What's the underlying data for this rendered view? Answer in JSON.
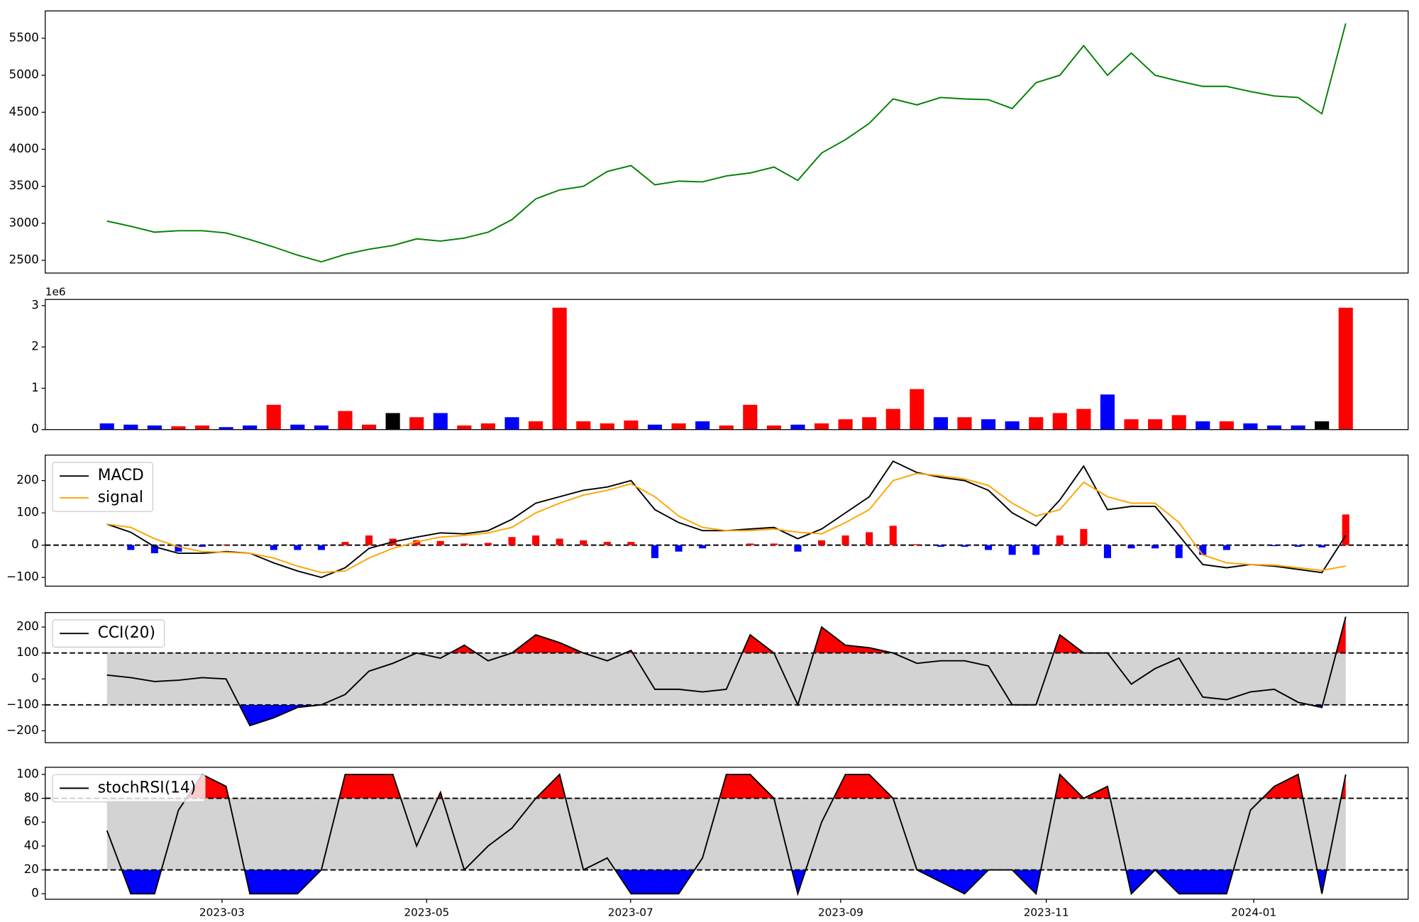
{
  "chart_data": [
    {
      "type": "line",
      "xlim": [
        -2.59,
        54.62
      ],
      "ylim": [
        2328,
        5869
      ],
      "yticks": [
        2500,
        3000,
        3500,
        4000,
        4500,
        5000,
        5500
      ],
      "series": [
        {
          "color": "#008000",
          "values": [
            3030,
            2960,
            2880,
            2900,
            2900,
            2870,
            2780,
            2680,
            2570,
            2480,
            2580,
            2650,
            2700,
            2790,
            2760,
            2800,
            2880,
            3050,
            3330,
            3450,
            3500,
            3700,
            3780,
            3520,
            3570,
            3560,
            3640,
            3680,
            3760,
            3580,
            3950,
            4130,
            4350,
            4680,
            4600,
            4700,
            4680,
            4670,
            4550,
            4900,
            5000,
            5400,
            5000,
            5300,
            5000,
            4920,
            4850,
            4850,
            4780,
            4720,
            4700,
            4480,
            5700
          ]
        }
      ]
    },
    {
      "type": "bar",
      "xlim": [
        -2.59,
        54.62
      ],
      "offset_text": "1e6",
      "ylim": [
        0,
        3.15
      ],
      "yticks": [
        0,
        1,
        2,
        3
      ],
      "values": [
        0.15,
        0.12,
        0.1,
        0.08,
        0.1,
        0.06,
        0.1,
        0.6,
        0.12,
        0.1,
        0.45,
        0.12,
        0.4,
        0.3,
        0.4,
        0.1,
        0.15,
        0.3,
        0.2,
        2.95,
        0.2,
        0.15,
        0.22,
        0.12,
        0.15,
        0.2,
        0.1,
        0.6,
        0.1,
        0.12,
        0.15,
        0.25,
        0.3,
        0.5,
        0.98,
        0.3,
        0.3,
        0.25,
        0.2,
        0.3,
        0.4,
        0.5,
        0.85,
        0.25,
        0.25,
        0.35,
        0.2,
        0.2,
        0.15,
        0.1,
        0.1,
        0.2,
        2.95
      ],
      "colors": [
        "blue",
        "blue",
        "blue",
        "red",
        "red",
        "blue",
        "blue",
        "red",
        "blue",
        "blue",
        "red",
        "red",
        "black",
        "red",
        "blue",
        "red",
        "red",
        "blue",
        "red",
        "red",
        "red",
        "red",
        "red",
        "blue",
        "red",
        "blue",
        "red",
        "red",
        "red",
        "blue",
        "red",
        "red",
        "red",
        "red",
        "red",
        "blue",
        "red",
        "blue",
        "blue",
        "red",
        "red",
        "red",
        "blue",
        "red",
        "red",
        "red",
        "blue",
        "red",
        "blue",
        "blue",
        "blue",
        "black",
        "red"
      ]
    },
    {
      "type": "line",
      "xlim": [
        -2.59,
        54.62
      ],
      "legend": "upper left",
      "ylim": [
        -127,
        279
      ],
      "yticks": [
        {
          "value": -100,
          "label": "−100"
        },
        0,
        100,
        200
      ],
      "hlines": [
        0
      ],
      "series": [
        {
          "kind": "bar",
          "positive_color": "red",
          "negative_color": "blue",
          "values": [
            0,
            -15,
            -25,
            -20,
            -5,
            2,
            0,
            -15,
            -15,
            -15,
            10,
            30,
            20,
            15,
            13,
            5,
            7,
            25,
            30,
            20,
            15,
            10,
            10,
            -40,
            -20,
            -10,
            0,
            5,
            5,
            -20,
            15,
            30,
            40,
            60,
            3,
            -5,
            -5,
            -15,
            -30,
            -30,
            30,
            50,
            -40,
            -10,
            -10,
            -40,
            -30,
            -15,
            0,
            -3,
            -5,
            -7,
            95
          ]
        },
        {
          "name": "MACD",
          "color": "#000000",
          "values": [
            65,
            40,
            -5,
            -25,
            -25,
            -20,
            -25,
            -55,
            -80,
            -100,
            -70,
            -10,
            10,
            25,
            38,
            35,
            45,
            80,
            130,
            150,
            170,
            180,
            200,
            110,
            70,
            45,
            45,
            50,
            55,
            20,
            50,
            100,
            150,
            260,
            225,
            210,
            200,
            170,
            100,
            60,
            140,
            245,
            110,
            120,
            120,
            30,
            -60,
            -70,
            -60,
            -65,
            -75,
            -85,
            30
          ]
        },
        {
          "name": "signal",
          "color": "#ffa500",
          "values": [
            65,
            55,
            20,
            -5,
            -20,
            -22,
            -25,
            -40,
            -65,
            -85,
            -80,
            -40,
            -10,
            10,
            25,
            30,
            38,
            55,
            100,
            130,
            155,
            170,
            190,
            150,
            90,
            55,
            45,
            45,
            50,
            40,
            35,
            70,
            110,
            200,
            222,
            215,
            205,
            185,
            130,
            90,
            110,
            195,
            150,
            130,
            130,
            70,
            -30,
            -55,
            -60,
            -62,
            -70,
            -78,
            -65
          ]
        }
      ]
    },
    {
      "type": "oscillator",
      "xlim": [
        -2.59,
        54.62
      ],
      "legend": "upper left",
      "ylim": [
        -246,
        256
      ],
      "yticks": [
        {
          "value": -200,
          "label": "−200"
        },
        {
          "value": -100,
          "label": "−100"
        },
        0,
        100,
        200
      ],
      "bands": [
        -100,
        100
      ],
      "band_fill": "#d3d3d3",
      "above_color": "red",
      "below_color": "blue",
      "series": [
        {
          "name": "CCI(20)",
          "color": "#000000",
          "values": [
            15,
            5,
            -10,
            -5,
            5,
            0,
            -180,
            -150,
            -110,
            -100,
            -60,
            30,
            60,
            100,
            80,
            130,
            70,
            100,
            170,
            140,
            100,
            70,
            110,
            -40,
            -40,
            -50,
            -40,
            170,
            100,
            -100,
            200,
            130,
            120,
            100,
            60,
            70,
            70,
            50,
            -100,
            -100,
            170,
            100,
            100,
            -20,
            40,
            80,
            -70,
            -80,
            -50,
            -40,
            -90,
            -110,
            240
          ]
        }
      ]
    },
    {
      "type": "oscillator",
      "xlim": [
        -2.59,
        54.62
      ],
      "legend": "upper left",
      "ylim": [
        -4.6,
        106
      ],
      "yticks": [
        0,
        20,
        40,
        60,
        80,
        100
      ],
      "bands": [
        20,
        80
      ],
      "band_fill": "#d3d3d3",
      "above_color": "red",
      "below_color": "blue",
      "xticks": [
        {
          "value": 4.83,
          "label": "2023-03"
        },
        {
          "value": 13.42,
          "label": "2023-05"
        },
        {
          "value": 21.98,
          "label": "2023-07"
        },
        {
          "value": 30.8,
          "label": "2023-09"
        },
        {
          "value": 39.43,
          "label": "2023-11"
        },
        {
          "value": 48.14,
          "label": "2024-01"
        }
      ],
      "series": [
        {
          "name": "stochRSI(14)",
          "color": "#000000",
          "values": [
            53,
            0,
            0,
            70,
            100,
            90,
            0,
            0,
            0,
            20,
            100,
            100,
            100,
            40,
            85,
            20,
            40,
            55,
            80,
            100,
            20,
            30,
            0,
            0,
            0,
            30,
            100,
            100,
            80,
            0,
            60,
            100,
            100,
            80,
            20,
            10,
            0,
            20,
            20,
            0,
            100,
            80,
            90,
            0,
            20,
            0,
            0,
            0,
            70,
            90,
            100,
            0,
            100
          ]
        }
      ]
    }
  ]
}
